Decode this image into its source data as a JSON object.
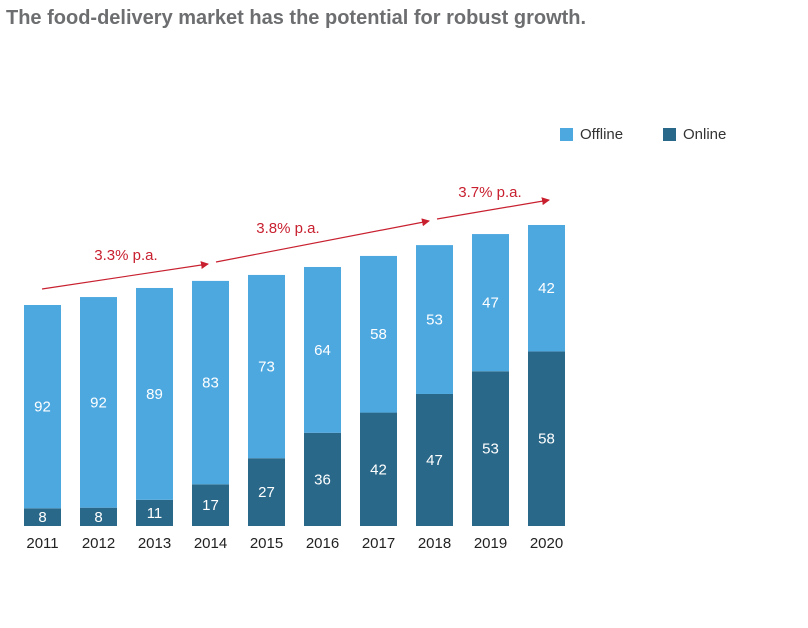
{
  "chart_data": {
    "type": "stacked_bar",
    "title": "The food-delivery market has the potential for robust growth.",
    "categories": [
      "2011",
      "2012",
      "2013",
      "2014",
      "2015",
      "2016",
      "2017",
      "2018",
      "2019",
      "2020"
    ],
    "series": [
      {
        "name": "Offline",
        "color": "#4da8e0",
        "values": [
          92,
          92,
          89,
          83,
          73,
          64,
          58,
          53,
          47,
          42
        ]
      },
      {
        "name": "Online",
        "color": "#2a6889",
        "values": [
          8,
          8,
          11,
          17,
          27,
          36,
          42,
          47,
          53,
          58
        ]
      }
    ],
    "market_size_index": [
      100,
      103.6,
      107.7,
      110.9,
      113.6,
      117.2,
      122.2,
      127.1,
      132.1,
      136.2
    ],
    "annotations": [
      "3.3% p.a.",
      "3.8% p.a.",
      "3.7% p.a."
    ],
    "legend": "top-right"
  }
}
